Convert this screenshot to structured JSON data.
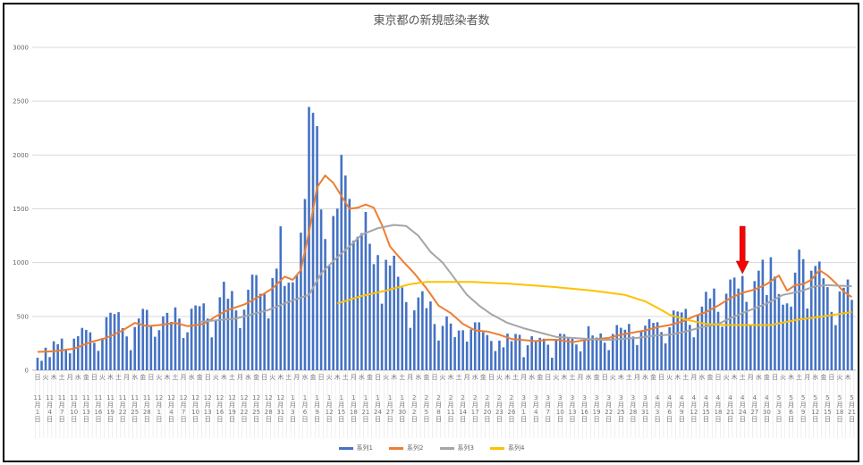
{
  "chart_data": {
    "type": "bar+line",
    "title": "東京都の新規感染者数",
    "ylim": [
      0,
      3000
    ],
    "yticks": [
      "0",
      "500",
      "1000",
      "1500",
      "2000",
      "2500",
      "3000"
    ],
    "grid": true,
    "legend_position": "bottom",
    "colors": {
      "series1": "#4472C4",
      "series2": "#ED7D31",
      "series3": "#A5A5A5",
      "series4": "#FFC000",
      "arrow": "#FF0000"
    },
    "date_tick_labels": [
      "11月1日",
      "11月4日",
      "11月7日",
      "11月10日",
      "11月13日",
      "11月16日",
      "11月19日",
      "11月22日",
      "11月25日",
      "11月28日",
      "12月1日",
      "12月4日",
      "12月7日",
      "12月10日",
      "12月13日",
      "12月16日",
      "12月19日",
      "12月22日",
      "12月25日",
      "12月28日",
      "12月31日",
      "1月3日",
      "1月6日",
      "1月9日",
      "1月12日",
      "1月15日",
      "1月18日",
      "1月21日",
      "1月24日",
      "1月27日",
      "1月30日",
      "2月2日",
      "2月5日",
      "2月8日",
      "2月11日",
      "2月14日",
      "2月17日",
      "2月20日",
      "2月23日",
      "2月26日",
      "3月1日",
      "3月4日",
      "3月7日",
      "3月10日",
      "3月13日",
      "3月16日",
      "3月19日",
      "3月22日",
      "3月25日",
      "3月28日",
      "3月31日",
      "4月3日",
      "4月6日",
      "4月9日",
      "4月12日",
      "4月15日",
      "4月18日",
      "4月21日",
      "4月24日",
      "4月27日",
      "4月30日",
      "5月3日",
      "5月6日",
      "5月9日",
      "5月12日",
      "5月15日",
      "5月18日",
      "5月21日"
    ],
    "weekday_tick_labels": [
      "日",
      "火",
      "木",
      "土",
      "月",
      "水",
      "金",
      "日",
      "火",
      "木",
      "土",
      "月",
      "水",
      "金",
      "日",
      "火",
      "木",
      "土",
      "月",
      "水",
      "金",
      "日",
      "火",
      "木",
      "土",
      "月",
      "水",
      "金",
      "日",
      "火",
      "木",
      "土",
      "月",
      "水",
      "金",
      "日",
      "火",
      "木",
      "土",
      "月",
      "水",
      "金",
      "日",
      "火",
      "木",
      "土",
      "月",
      "水",
      "金",
      "日",
      "火",
      "木",
      "土",
      "月",
      "水",
      "金",
      "日",
      "火",
      "木",
      "土",
      "月",
      "水",
      "金",
      "日",
      "火",
      "木",
      "土",
      "月",
      "水",
      "金",
      "日",
      "火",
      "木",
      "土",
      "月",
      "水",
      "金",
      "日",
      "火",
      "木",
      "土",
      "月",
      "水",
      "金",
      "日",
      "火",
      "木",
      "土",
      "月",
      "水",
      "金",
      "日",
      "火",
      "木",
      "土",
      "月",
      "水",
      "金",
      "日",
      "火",
      "木"
    ],
    "series": [
      {
        "name": "系列1",
        "type": "bar",
        "values": [
          116,
          87,
          209,
          122,
          269,
          242,
          294,
          189,
          157,
          293,
          317,
          393,
          374,
          352,
          255,
          180,
          298,
          493,
          534,
          522,
          539,
          391,
          314,
          186,
          401,
          481,
          570,
          561,
          418,
          311,
          372,
          500,
          533,
          449,
          584,
          480,
          299,
          352,
          572,
          602,
          595,
          621,
          480,
          305,
          460,
          678,
          822,
          664,
          736,
          556,
          392,
          563,
          748,
          888,
          884,
          710,
          708,
          481,
          856,
          944,
          1337,
          783,
          814,
          816,
          884,
          1278,
          1591,
          2447,
          2392,
          2268,
          1494,
          1219,
          970,
          1433,
          1502,
          2001,
          1809,
          1592,
          1204,
          1240,
          1274,
          1471,
          1175,
          986,
          1070,
          618,
          1026,
          973,
          1064,
          868,
          769,
          633,
          393,
          556,
          676,
          734,
          577,
          639,
          429,
          276,
          412,
          500,
          434,
          307,
          369,
          371,
          266,
          378,
          445,
          445,
          353,
          327,
          272,
          178,
          275,
          213,
          340,
          270,
          337,
          329,
          121,
          232,
          316,
          279,
          301,
          293,
          237,
          116,
          290,
          340,
          335,
          304,
          293,
          239,
          175,
          300,
          409,
          323,
          303,
          342,
          256,
          187,
          337,
          420,
          394,
          376,
          430,
          313,
          234,
          364,
          414,
          475,
          440,
          446,
          355,
          249,
          399,
          555,
          545,
          537,
          570,
          421,
          306,
          510,
          591,
          729,
          667,
          759,
          543,
          405,
          711,
          843,
          861,
          759,
          876,
          635,
          425,
          828,
          925,
          1027,
          698,
          1050,
          870,
          708,
          609,
          621,
          591,
          907,
          1121,
          1032,
          573,
          925,
          969,
          1010,
          854,
          772,
          542,
          419,
          732,
          766,
          843,
          654
        ]
      },
      {
        "name": "系列2",
        "type": "line",
        "points": [
          [
            "11/1",
            170
          ],
          [
            "11/5",
            175
          ],
          [
            "11/10",
            200
          ],
          [
            "11/14",
            260
          ],
          [
            "11/18",
            300
          ],
          [
            "11/22",
            370
          ],
          [
            "11/25",
            440
          ],
          [
            "11/28",
            410
          ],
          [
            "12/1",
            420
          ],
          [
            "12/5",
            440
          ],
          [
            "12/8",
            410
          ],
          [
            "12/12",
            430
          ],
          [
            "12/15",
            500
          ],
          [
            "12/18",
            560
          ],
          [
            "12/22",
            610
          ],
          [
            "12/26",
            690
          ],
          [
            "12/29",
            760
          ],
          [
            "1/1",
            870
          ],
          [
            "1/3",
            840
          ],
          [
            "1/5",
            930
          ],
          [
            "1/7",
            1280
          ],
          [
            "1/9",
            1700
          ],
          [
            "1/11",
            1810
          ],
          [
            "1/13",
            1740
          ],
          [
            "1/15",
            1620
          ],
          [
            "1/17",
            1500
          ],
          [
            "1/19",
            1510
          ],
          [
            "1/21",
            1540
          ],
          [
            "1/23",
            1510
          ],
          [
            "1/25",
            1350
          ],
          [
            "1/27",
            1150
          ],
          [
            "1/30",
            1020
          ],
          [
            "2/2",
            900
          ],
          [
            "2/5",
            760
          ],
          [
            "2/8",
            600
          ],
          [
            "2/11",
            530
          ],
          [
            "2/14",
            430
          ],
          [
            "2/17",
            370
          ],
          [
            "2/20",
            360
          ],
          [
            "2/23",
            330
          ],
          [
            "2/26",
            290
          ],
          [
            "3/1",
            280
          ],
          [
            "3/4",
            270
          ],
          [
            "3/7",
            285
          ],
          [
            "3/10",
            280
          ],
          [
            "3/13",
            260
          ],
          [
            "3/16",
            280
          ],
          [
            "3/19",
            290
          ],
          [
            "3/22",
            300
          ],
          [
            "3/25",
            330
          ],
          [
            "3/28",
            350
          ],
          [
            "3/31",
            370
          ],
          [
            "4/3",
            400
          ],
          [
            "4/6",
            420
          ],
          [
            "4/9",
            450
          ],
          [
            "4/12",
            500
          ],
          [
            "4/15",
            540
          ],
          [
            "4/18",
            600
          ],
          [
            "4/21",
            670
          ],
          [
            "4/24",
            720
          ],
          [
            "4/27",
            750
          ],
          [
            "4/30",
            800
          ],
          [
            "5/3",
            880
          ],
          [
            "5/5",
            740
          ],
          [
            "5/7",
            790
          ],
          [
            "5/9",
            800
          ],
          [
            "5/11",
            840
          ],
          [
            "5/13",
            930
          ],
          [
            "5/15",
            880
          ],
          [
            "5/17",
            810
          ],
          [
            "5/19",
            730
          ],
          [
            "5/21",
            680
          ]
        ]
      },
      {
        "name": "系列3",
        "type": "line",
        "points": [
          [
            "12/11",
            450
          ],
          [
            "12/20",
            480
          ],
          [
            "12/28",
            560
          ],
          [
            "1/3",
            650
          ],
          [
            "1/7",
            700
          ],
          [
            "1/10",
            900
          ],
          [
            "1/14",
            1050
          ],
          [
            "1/17",
            1150
          ],
          [
            "1/20",
            1260
          ],
          [
            "1/24",
            1320
          ],
          [
            "1/28",
            1350
          ],
          [
            "1/31",
            1340
          ],
          [
            "2/3",
            1250
          ],
          [
            "2/6",
            1100
          ],
          [
            "2/9",
            1000
          ],
          [
            "2/12",
            850
          ],
          [
            "2/15",
            700
          ],
          [
            "2/18",
            600
          ],
          [
            "2/21",
            520
          ],
          [
            "2/25",
            440
          ],
          [
            "3/1",
            390
          ],
          [
            "3/5",
            350
          ],
          [
            "3/9",
            310
          ],
          [
            "3/13",
            300
          ],
          [
            "3/17",
            290
          ],
          [
            "3/21",
            280
          ],
          [
            "3/25",
            290
          ],
          [
            "3/29",
            300
          ],
          [
            "4/2",
            320
          ],
          [
            "4/6",
            330
          ],
          [
            "4/10",
            360
          ],
          [
            "4/14",
            400
          ],
          [
            "4/18",
            430
          ],
          [
            "4/22",
            500
          ],
          [
            "4/26",
            560
          ],
          [
            "4/30",
            620
          ],
          [
            "5/4",
            700
          ],
          [
            "5/8",
            730
          ],
          [
            "5/12",
            780
          ],
          [
            "5/15",
            790
          ],
          [
            "5/21",
            780
          ]
        ]
      },
      {
        "name": "系列4",
        "type": "line",
        "points": [
          [
            "1/14",
            620
          ],
          [
            "1/20",
            690
          ],
          [
            "1/26",
            740
          ],
          [
            "2/1",
            800
          ],
          [
            "2/5",
            820
          ],
          [
            "2/16",
            820
          ],
          [
            "2/25",
            805
          ],
          [
            "3/8",
            775
          ],
          [
            "3/18",
            740
          ],
          [
            "3/26",
            700
          ],
          [
            "3/31",
            640
          ],
          [
            "4/4",
            560
          ],
          [
            "4/6",
            515
          ],
          [
            "4/10",
            470
          ],
          [
            "4/15",
            430
          ],
          [
            "4/20",
            420
          ],
          [
            "5/1",
            420
          ],
          [
            "5/7",
            465
          ],
          [
            "5/14",
            500
          ],
          [
            "5/21",
            540
          ]
        ]
      }
    ],
    "annotation": {
      "type": "arrow",
      "at": "4/24",
      "direction": "down"
    }
  }
}
